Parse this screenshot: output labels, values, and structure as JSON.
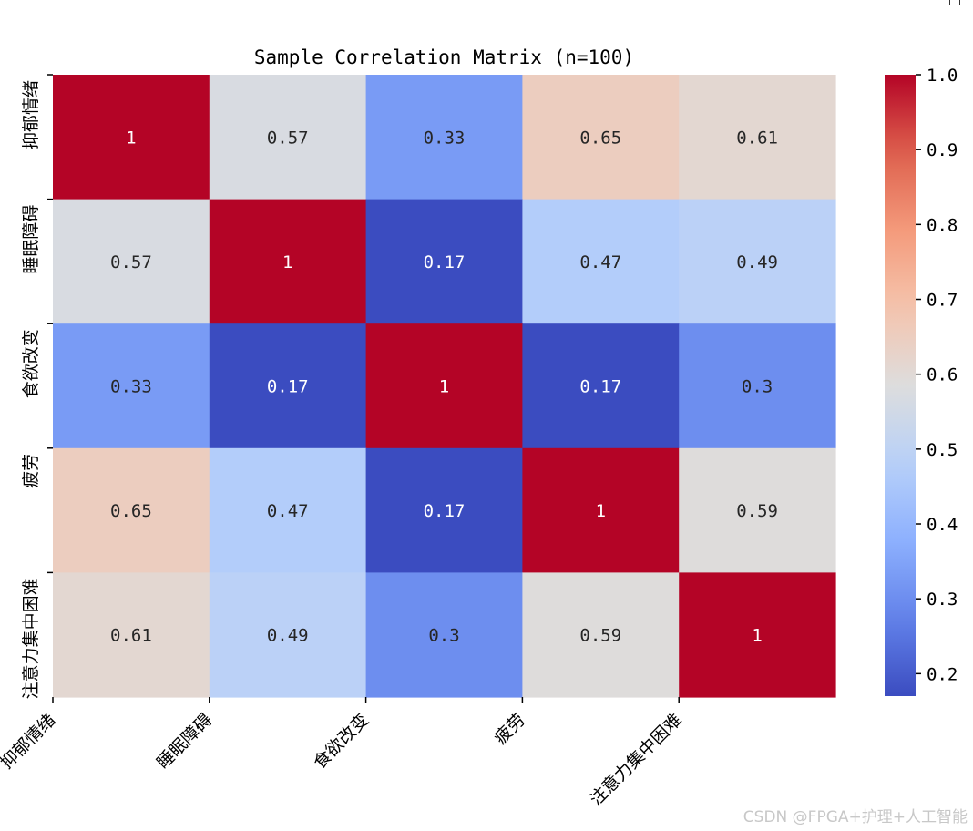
{
  "chart_data": {
    "type": "heatmap",
    "title": "Sample Correlation Matrix (n=100)",
    "row_labels": [
      "抑郁情绪",
      "睡眠障碍",
      "食欲改变",
      "疲劳",
      "注意力集中困难"
    ],
    "col_labels": [
      "抑郁情绪",
      "睡眠障碍",
      "食欲改变",
      "疲劳",
      "注意力集中困难"
    ],
    "values": [
      [
        1,
        0.57,
        0.33,
        0.65,
        0.61
      ],
      [
        0.57,
        1,
        0.17,
        0.47,
        0.49
      ],
      [
        0.33,
        0.17,
        1,
        0.17,
        0.3
      ],
      [
        0.65,
        0.47,
        0.17,
        1,
        0.59
      ],
      [
        0.61,
        0.49,
        0.3,
        0.59,
        1
      ]
    ],
    "colormap": "coolwarm",
    "vmin": 0.17,
    "vmax": 1.0,
    "colorbar_ticks": [
      "0.2",
      "0.3",
      "0.4",
      "0.5",
      "0.6",
      "0.7",
      "0.8",
      "0.9",
      "1.0"
    ],
    "annotations": true,
    "grid": false,
    "colorbar_position": "right"
  },
  "watermark": "CSDN @FPGA+护理+人工智能"
}
